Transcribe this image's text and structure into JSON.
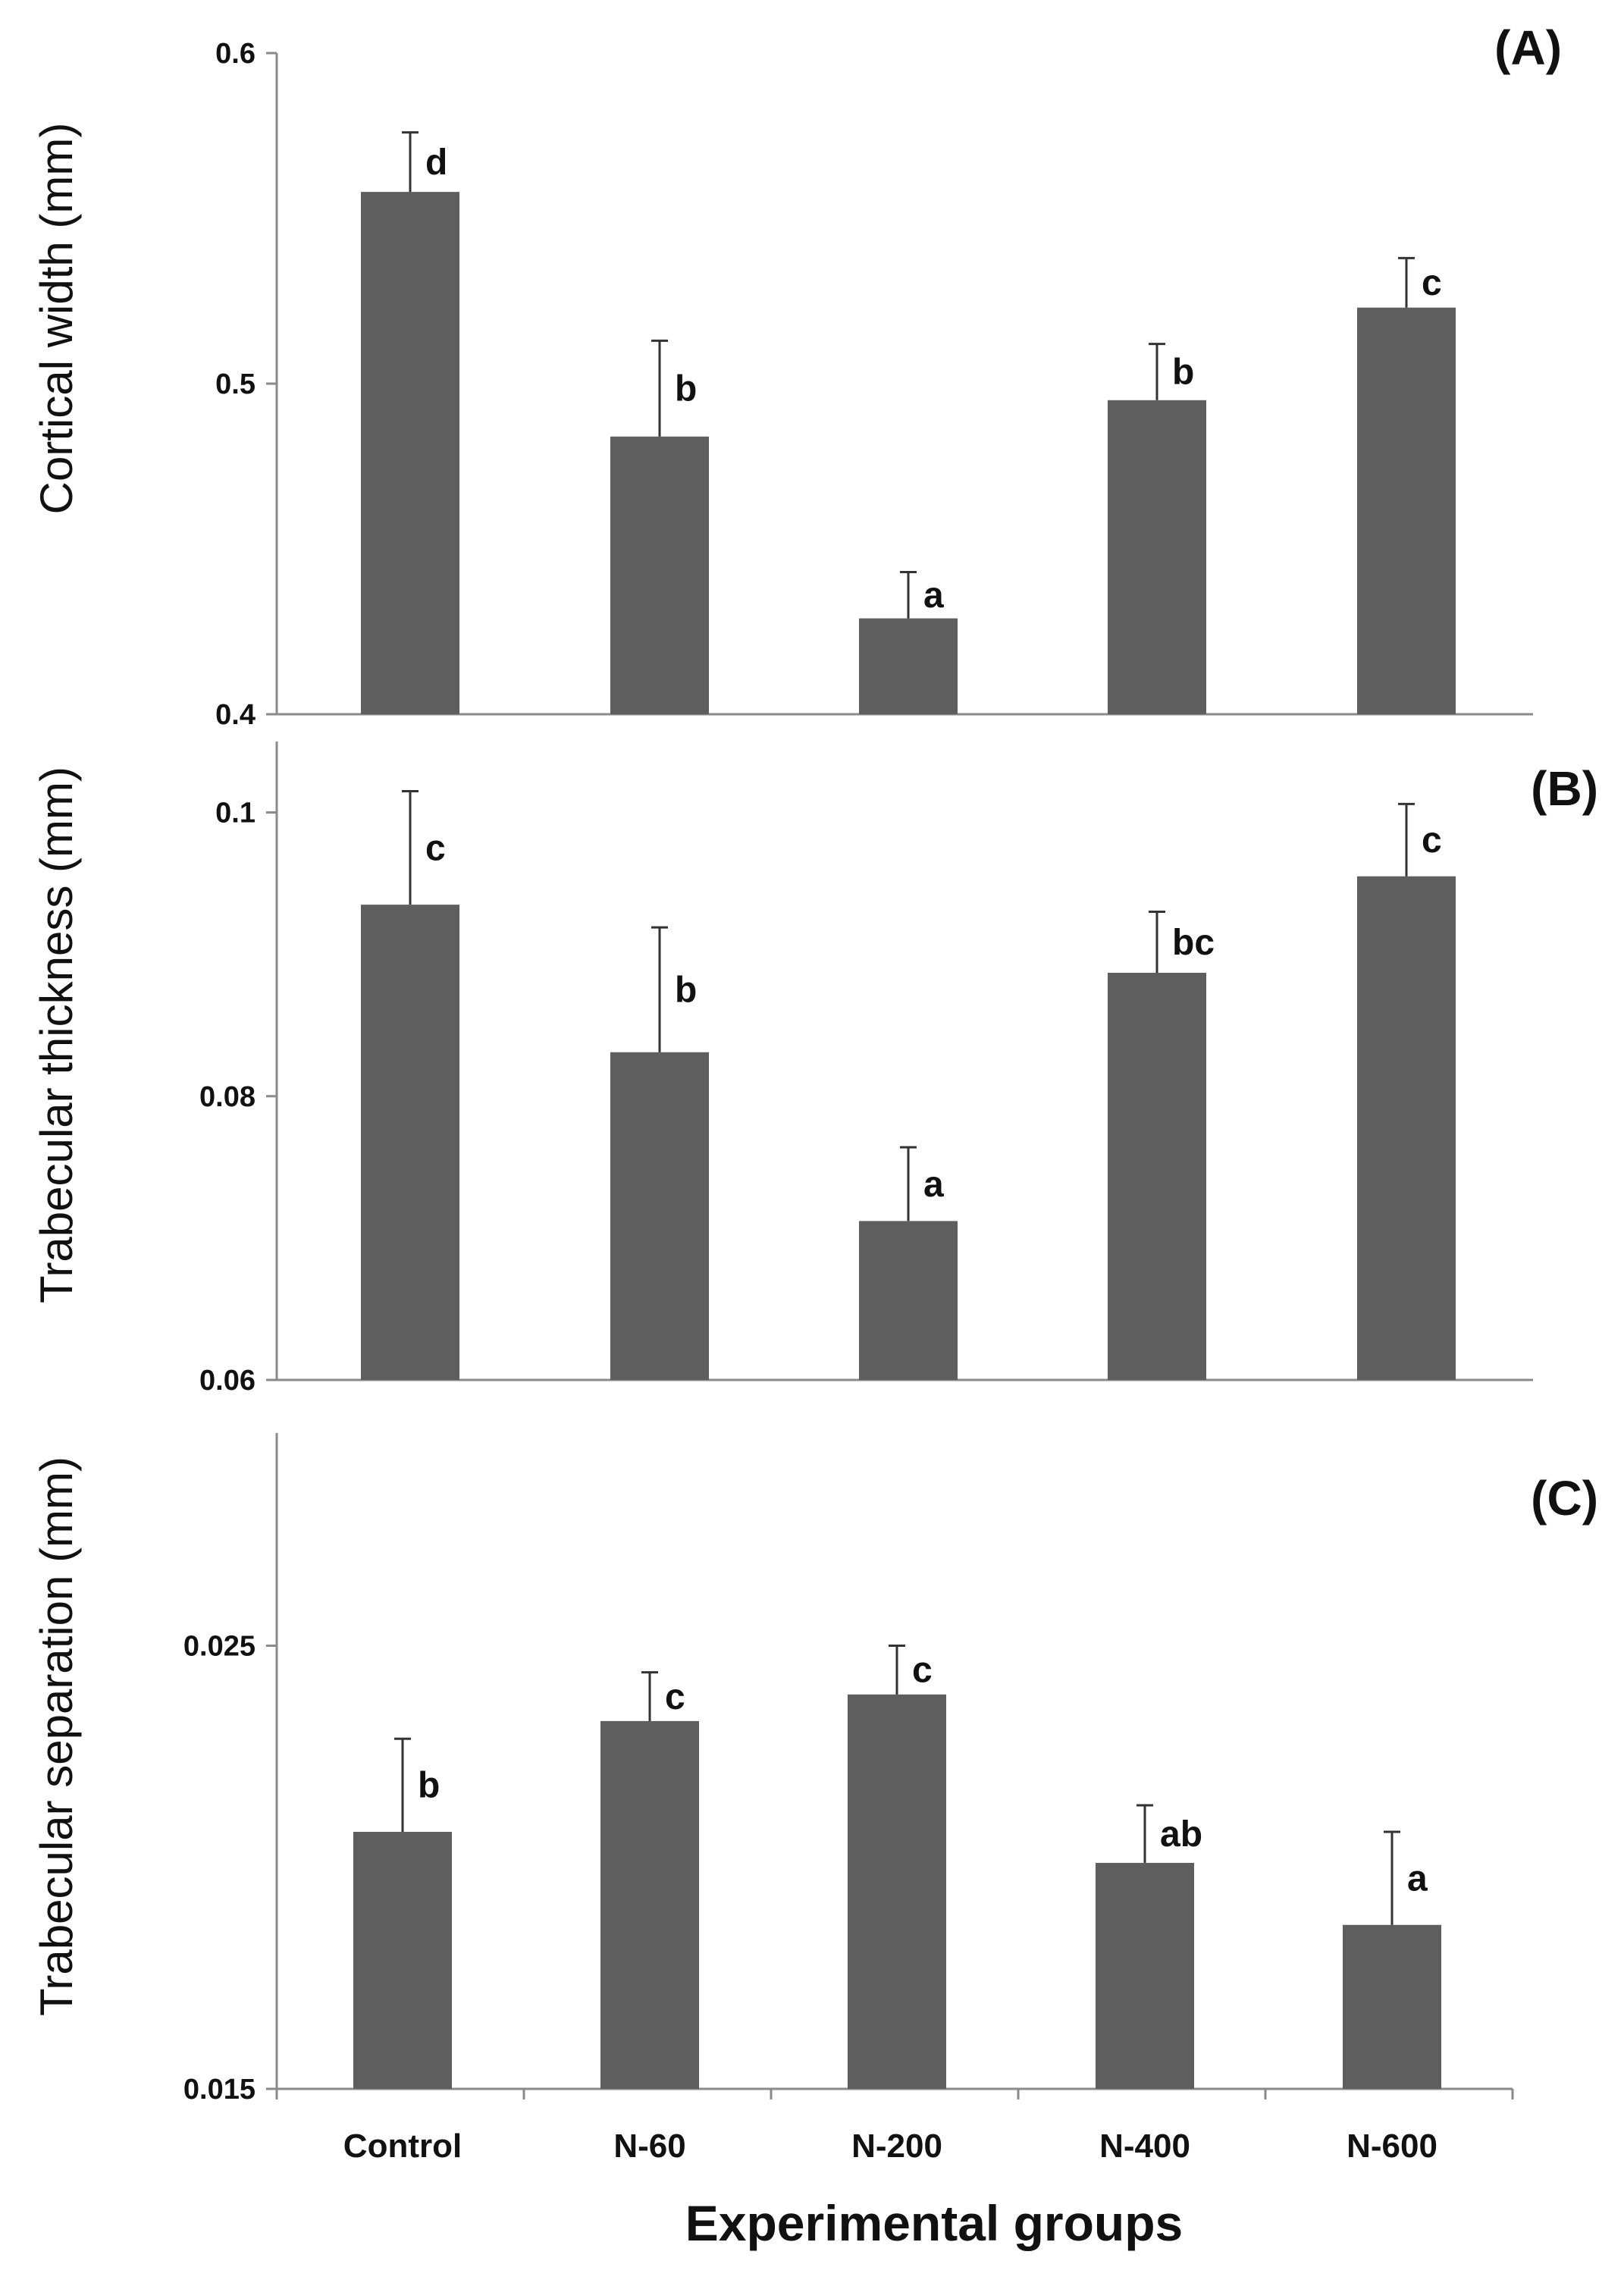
{
  "chart_data": [
    {
      "type": "bar",
      "panel_label": "(A)",
      "ylabel": "Cortical width (mm)",
      "ylim": [
        0.4,
        0.6
      ],
      "yticks": [
        "0.4",
        "0.5",
        "0.6"
      ],
      "categories": [
        "Control",
        "N-60",
        "N-200",
        "N-400",
        "N-600"
      ],
      "values": [
        0.558,
        0.484,
        0.429,
        0.495,
        0.523
      ],
      "errors": [
        0.018,
        0.029,
        0.014,
        0.017,
        0.015
      ],
      "significance": [
        "d",
        "b",
        "a",
        "b",
        "c"
      ],
      "show_category_labels": false
    },
    {
      "type": "bar",
      "panel_label": "(B)",
      "ylabel": "Trabecular thickness (mm)",
      "ylim": [
        0.06,
        0.105
      ],
      "yticks": [
        "0.06",
        "0.08",
        "0.1"
      ],
      "categories": [
        "Control",
        "N-60",
        "N-200",
        "N-400",
        "N-600"
      ],
      "values": [
        0.0935,
        0.0831,
        0.0712,
        0.0887,
        0.0955
      ],
      "errors": [
        0.008,
        0.0088,
        0.0052,
        0.0043,
        0.0051
      ],
      "significance": [
        "c",
        "b",
        "a",
        "bc",
        "c"
      ],
      "show_category_labels": false
    },
    {
      "type": "bar",
      "panel_label": "(C)",
      "ylabel": "Trabecular separation  (mm)",
      "ylim": [
        0.015,
        0.0298
      ],
      "yticks": [
        "0.015",
        "0.025"
      ],
      "categories": [
        "Control",
        "N-60",
        "N-200",
        "N-400",
        "N-600"
      ],
      "values": [
        0.0208,
        0.0233,
        0.0239,
        0.0201,
        0.0187
      ],
      "errors": [
        0.0021,
        0.0011,
        0.0011,
        0.0013,
        0.0021
      ],
      "significance": [
        "b",
        "c",
        "c",
        "ab",
        "a"
      ],
      "xlabel": "Experimental groups",
      "show_category_labels": true
    }
  ],
  "colors": {
    "bar": "#5e5e5e",
    "axis": "#8a8a8a",
    "text": "#111111"
  }
}
